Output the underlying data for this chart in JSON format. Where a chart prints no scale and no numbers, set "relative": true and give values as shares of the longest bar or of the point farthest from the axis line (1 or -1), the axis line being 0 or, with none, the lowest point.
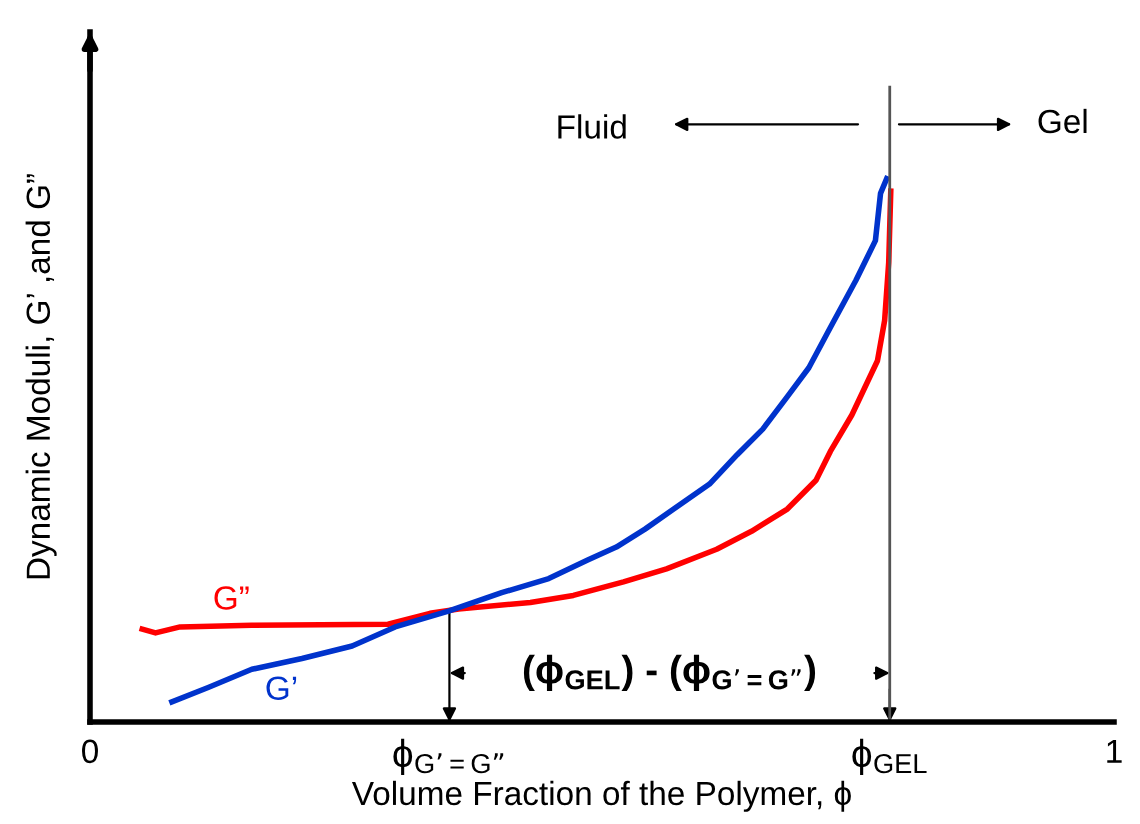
{
  "chart_data": {
    "type": "line",
    "relative": true,
    "xlabel": "Volume Fraction of the Polymer, ϕ",
    "ylabel": "Dynamic Moduli, G’ ,and G”",
    "xlim": [
      0,
      1
    ],
    "xticks": [
      0,
      {
        "value": 0.351,
        "label": "ϕ$_{G’=G”}$"
      },
      {
        "value": 0.781,
        "label": "ϕ$_{GEL}$"
      },
      1
    ],
    "series": [
      {
        "name": "G”",
        "color": "#ff0000",
        "x": [
          0.051,
          0.064,
          0.088,
          0.158,
          0.291,
          0.332,
          0.36,
          0.43,
          0.472,
          0.521,
          0.563,
          0.612,
          0.646,
          0.681,
          0.709,
          0.723,
          0.744,
          0.769,
          0.776,
          0.78,
          0.782
        ],
        "values": [
          0.171,
          0.164,
          0.175,
          0.178,
          0.18,
          0.2,
          0.208,
          0.22,
          0.233,
          0.258,
          0.282,
          0.318,
          0.351,
          0.392,
          0.445,
          0.498,
          0.565,
          0.665,
          0.739,
          0.846,
          0.977
        ]
      },
      {
        "name": "G’",
        "color": "#0033cc",
        "x": [
          0.08,
          0.116,
          0.158,
          0.207,
          0.256,
          0.298,
          0.35,
          0.402,
          0.448,
          0.486,
          0.514,
          0.542,
          0.57,
          0.605,
          0.632,
          0.657,
          0.681,
          0.702,
          0.723,
          0.748,
          0.767,
          0.772,
          0.778
        ],
        "values": [
          0.037,
          0.064,
          0.097,
          0.117,
          0.14,
          0.175,
          0.204,
          0.238,
          0.264,
          0.298,
          0.322,
          0.355,
          0.392,
          0.438,
          0.492,
          0.539,
          0.599,
          0.652,
          0.726,
          0.813,
          0.886,
          0.973,
          1.0
        ]
      }
    ],
    "ref_lines": [
      {
        "axis": "x",
        "value": 0.781,
        "color": "#555555"
      }
    ],
    "annotations": [
      "Fluid",
      "Gel",
      "(ϕ$_{GEL}$) - (ϕ$_{G’=G”}$)"
    ],
    "grid": false,
    "legend": false
  }
}
